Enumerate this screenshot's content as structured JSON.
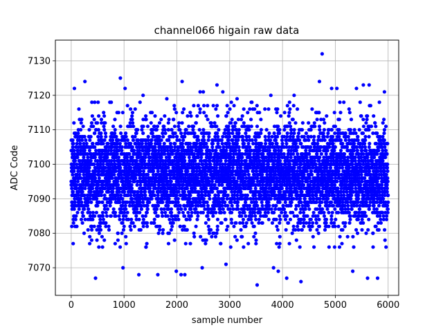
{
  "chart_data": {
    "type": "scatter",
    "title": "channel066 higain raw data",
    "xlabel": "sample number",
    "ylabel": "ADC Code",
    "xlim": [
      -300,
      6200
    ],
    "ylim": [
      7062,
      7136
    ],
    "xticks": [
      0,
      1000,
      2000,
      3000,
      4000,
      5000,
      6000
    ],
    "yticks": [
      7070,
      7080,
      7090,
      7100,
      7110,
      7120,
      7130
    ],
    "xtick_labels": [
      "0",
      "1000",
      "2000",
      "3000",
      "4000",
      "5000",
      "6000"
    ],
    "ytick_labels": [
      "7070",
      "7080",
      "7090",
      "7100",
      "7110",
      "7120",
      "7130"
    ],
    "grid": true,
    "legend": "none",
    "marker_color": "#0000ff",
    "n_samples": 6000,
    "value_range_typical": [
      7080,
      7114
    ],
    "central_value": 7097,
    "outliers": [
      {
        "x": 60,
        "y": 7122
      },
      {
        "x": 260,
        "y": 7124
      },
      {
        "x": 460,
        "y": 7067
      },
      {
        "x": 930,
        "y": 7125
      },
      {
        "x": 980,
        "y": 7070
      },
      {
        "x": 1020,
        "y": 7122
      },
      {
        "x": 1280,
        "y": 7068
      },
      {
        "x": 1360,
        "y": 7120
      },
      {
        "x": 1640,
        "y": 7068
      },
      {
        "x": 1810,
        "y": 7119
      },
      {
        "x": 1990,
        "y": 7069
      },
      {
        "x": 2080,
        "y": 7068
      },
      {
        "x": 2100,
        "y": 7124
      },
      {
        "x": 2150,
        "y": 7068
      },
      {
        "x": 2440,
        "y": 7121
      },
      {
        "x": 2500,
        "y": 7121
      },
      {
        "x": 2480,
        "y": 7070
      },
      {
        "x": 2760,
        "y": 7123
      },
      {
        "x": 2870,
        "y": 7121
      },
      {
        "x": 2930,
        "y": 7071
      },
      {
        "x": 3140,
        "y": 7119
      },
      {
        "x": 3520,
        "y": 7065
      },
      {
        "x": 3780,
        "y": 7120
      },
      {
        "x": 3830,
        "y": 7070
      },
      {
        "x": 3920,
        "y": 7069
      },
      {
        "x": 4080,
        "y": 7067
      },
      {
        "x": 4220,
        "y": 7120
      },
      {
        "x": 4350,
        "y": 7066
      },
      {
        "x": 4700,
        "y": 7124
      },
      {
        "x": 4750,
        "y": 7132
      },
      {
        "x": 4930,
        "y": 7122
      },
      {
        "x": 5030,
        "y": 7122
      },
      {
        "x": 5330,
        "y": 7069
      },
      {
        "x": 5400,
        "y": 7122
      },
      {
        "x": 5530,
        "y": 7123
      },
      {
        "x": 5610,
        "y": 7067
      },
      {
        "x": 5640,
        "y": 7123
      },
      {
        "x": 5800,
        "y": 7067
      },
      {
        "x": 5930,
        "y": 7121
      }
    ]
  }
}
